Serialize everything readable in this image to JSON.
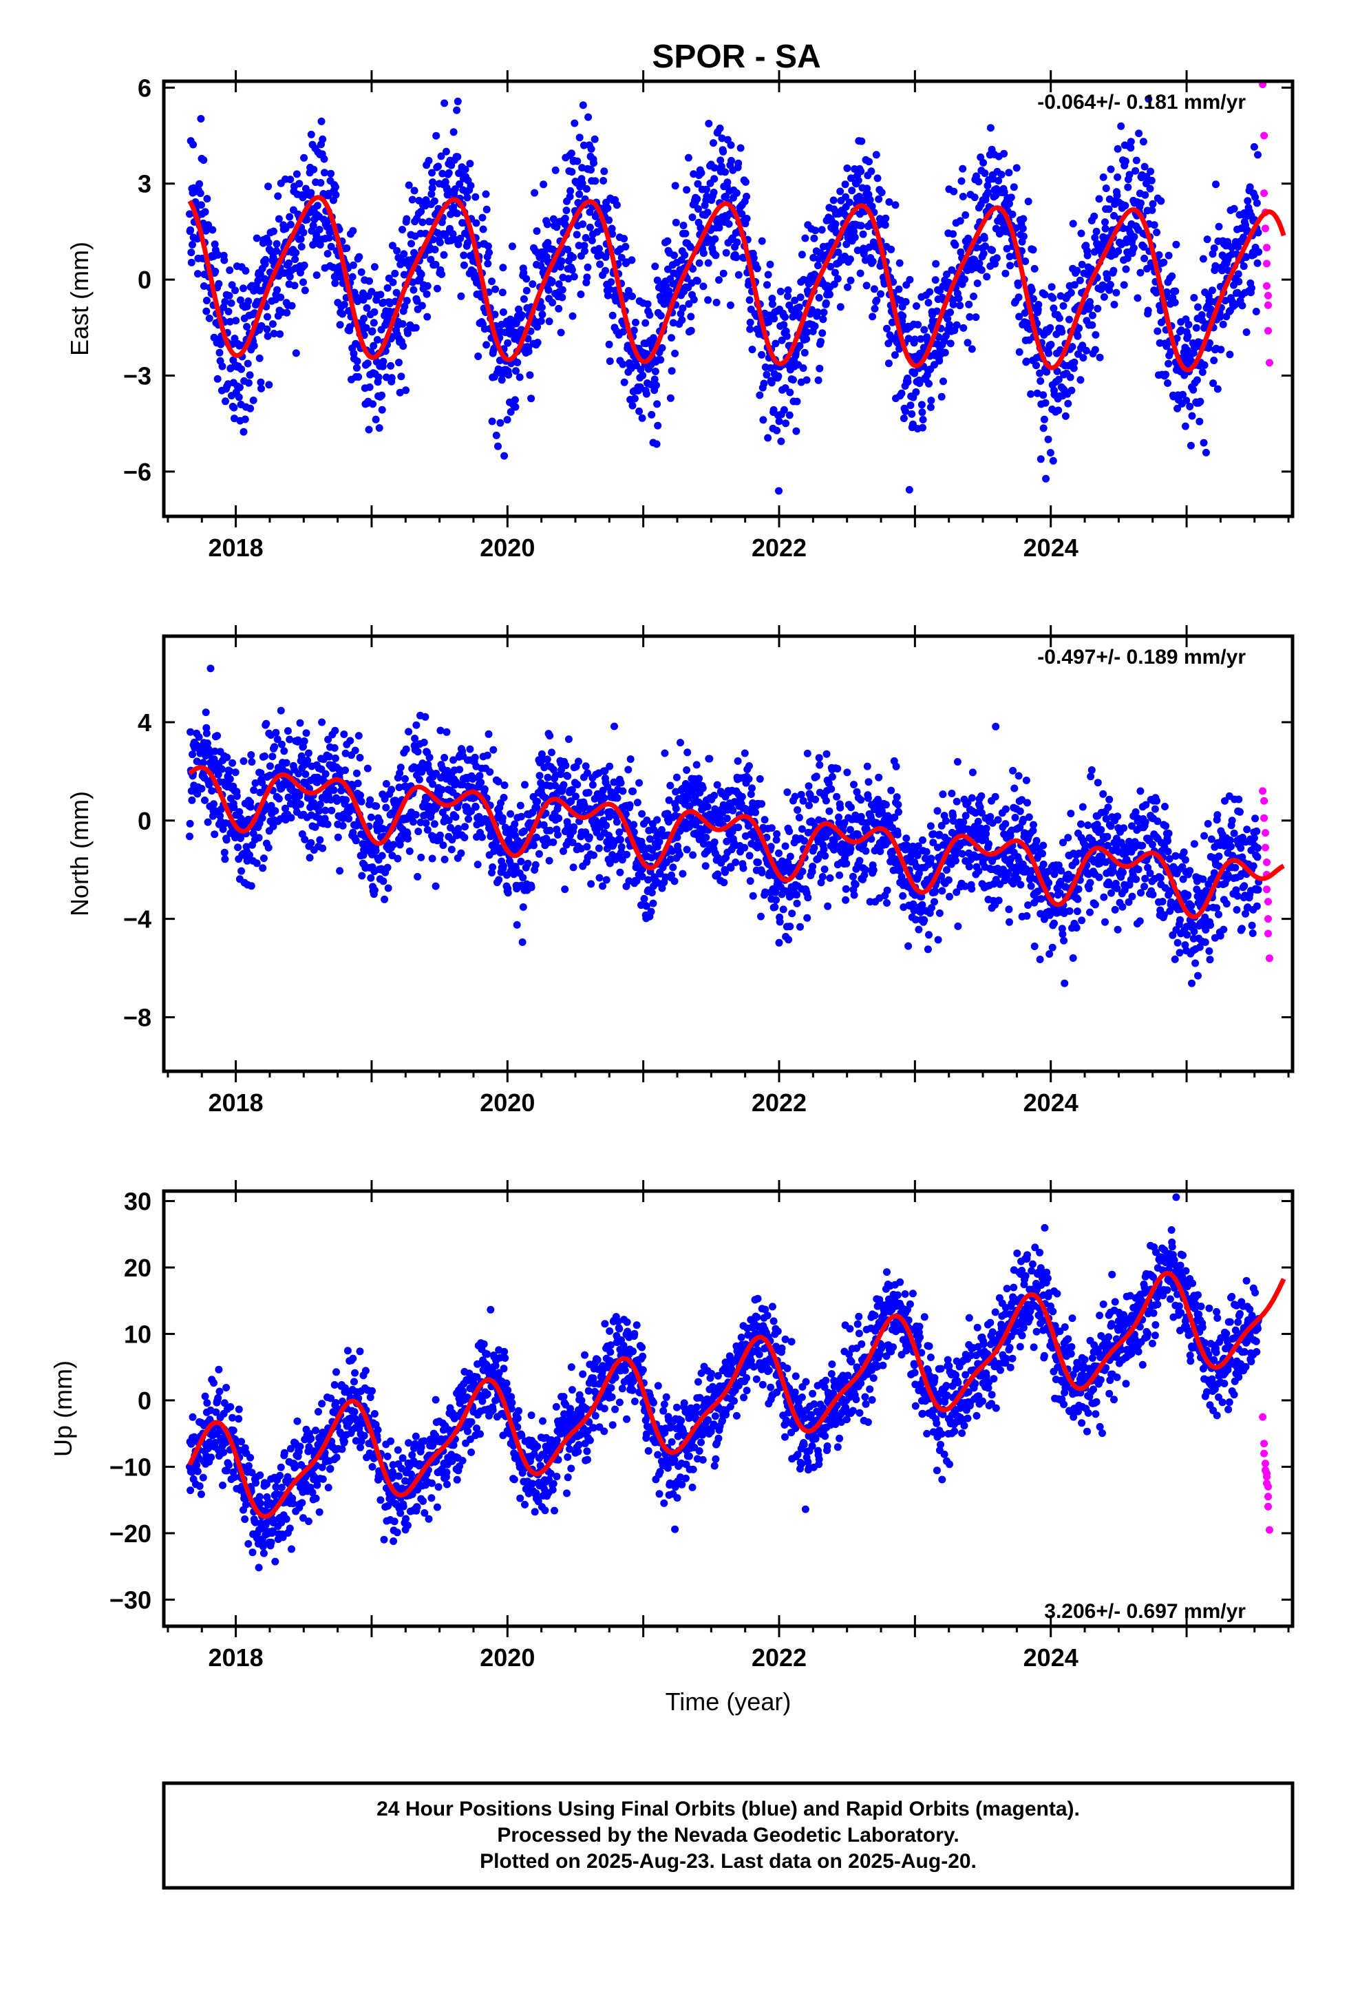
{
  "title": "SPOR - SA",
  "colors": {
    "final_orbits": "#0000ff",
    "rapid_orbits": "#ff00ff",
    "model": "#ff0000"
  },
  "xaxis": {
    "label": "Time (year)",
    "range": [
      2017.47,
      2025.78
    ],
    "ticks": [
      "2018",
      "2020",
      "2022",
      "2024"
    ]
  },
  "panels": [
    {
      "id": "east",
      "ylabel": "East (mm)",
      "ticks": [
        "6",
        "3",
        "0",
        "−3",
        "−6"
      ],
      "rate": "-0.064+/- 0.181 mm/yr"
    },
    {
      "id": "north",
      "ylabel": "North (mm)",
      "ticks": [
        "4",
        "0",
        "−4",
        "−8"
      ],
      "rate": "-0.497+/- 0.189 mm/yr"
    },
    {
      "id": "up",
      "ylabel": "Up (mm)",
      "ticks": [
        "30",
        "20",
        "10",
        "0",
        "−10",
        "−20",
        "−30"
      ],
      "rate": "3.206+/- 0.697 mm/yr"
    }
  ],
  "footer": {
    "line1": "24 Hour Positions Using Final Orbits (blue) and Rapid Orbits (magenta).",
    "line2": "Processed by the Nevada Geodetic Laboratory.",
    "line3": "Plotted on 2025-Aug-23. Last data on 2025-Aug-20."
  },
  "chart_data": [
    {
      "type": "scatter",
      "panel": "east",
      "title": "SPOR - SA",
      "xlabel": "",
      "ylabel": "East (mm)",
      "xlim": [
        2017.47,
        2025.78
      ],
      "ylim": [
        -7.4,
        6.2
      ],
      "rate": "-0.064+/- 0.181 mm/yr",
      "model": {
        "offset": 0.0,
        "trend": -0.064,
        "t0": 2021.6,
        "annual_amp": 2.35,
        "annual_peak": 2017.55,
        "semiannual_amp": 0.45,
        "semiannual_peak": 2017.7
      },
      "scatter_sd": 1.2,
      "series": [
        {
          "name": "Final Orbits (blue)",
          "x_range": [
            2017.66,
            2025.53
          ],
          "n": 2750
        },
        {
          "name": "Rapid Orbits (magenta)",
          "x": [
            2025.56,
            2025.57,
            2025.57,
            2025.58,
            2025.58,
            2025.59,
            2025.59,
            2025.59,
            2025.6,
            2025.6,
            2025.6,
            2025.61
          ],
          "y": [
            6.1,
            4.5,
            2.7,
            2.1,
            1.6,
            1.0,
            0.5,
            -0.2,
            -0.5,
            -0.8,
            -1.6,
            -2.6
          ]
        }
      ]
    },
    {
      "type": "scatter",
      "panel": "north",
      "xlabel": "",
      "ylabel": "North (mm)",
      "xlim": [
        2017.47,
        2025.78
      ],
      "ylim": [
        -10.2,
        7.5
      ],
      "rate": "-0.497+/- 0.189 mm/yr",
      "model": {
        "offset": -0.6,
        "trend": -0.497,
        "t0": 2021.6,
        "annual_amp": 0.9,
        "annual_peak": 2017.55,
        "semiannual_amp": 0.7,
        "semiannual_peak": 2017.8
      },
      "scatter_sd": 1.2,
      "series": [
        {
          "name": "Final Orbits (blue)",
          "x_range": [
            2017.66,
            2025.53
          ],
          "n": 2750
        },
        {
          "name": "Rapid Orbits (magenta)",
          "x": [
            2025.56,
            2025.57,
            2025.57,
            2025.58,
            2025.58,
            2025.59,
            2025.59,
            2025.59,
            2025.6,
            2025.6,
            2025.6,
            2025.61
          ],
          "y": [
            1.2,
            0.8,
            0.1,
            -0.5,
            -1.1,
            -1.7,
            -2.2,
            -2.8,
            -3.3,
            -4.0,
            -4.6,
            -5.6
          ]
        }
      ]
    },
    {
      "type": "scatter",
      "panel": "up",
      "xlabel": "Time (year)",
      "ylabel": "Up (mm)",
      "xlim": [
        2017.47,
        2025.78
      ],
      "ylim": [
        -34.0,
        31.5
      ],
      "rate": "3.206+/- 0.697 mm/yr",
      "model": {
        "offset": 0.6,
        "trend": 3.206,
        "t0": 2021.6,
        "annual_amp": 6.8,
        "annual_peak": 2017.8,
        "semiannual_amp": 2.0,
        "semiannual_peak": 2017.9
      },
      "scatter_sd": 3.5,
      "series": [
        {
          "name": "Final Orbits (blue)",
          "x_range": [
            2017.66,
            2025.53
          ],
          "n": 2750
        },
        {
          "name": "Rapid Orbits (magenta)",
          "x": [
            2025.56,
            2025.57,
            2025.57,
            2025.58,
            2025.58,
            2025.59,
            2025.59,
            2025.59,
            2025.6,
            2025.6,
            2025.6,
            2025.61
          ],
          "y": [
            -2.5,
            -6.5,
            -8.0,
            -9.5,
            -10.5,
            -11.0,
            -11.5,
            -12.5,
            -13.0,
            -14.5,
            -16.0,
            -19.5
          ]
        }
      ]
    }
  ]
}
